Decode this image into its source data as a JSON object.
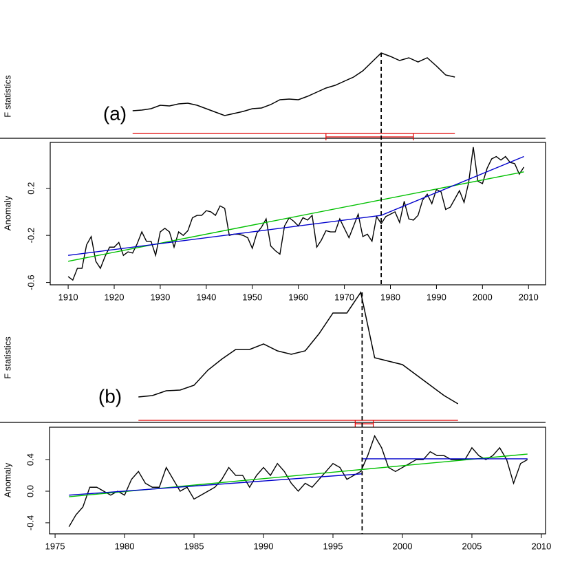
{
  "chart_data": [
    {
      "type": "line",
      "label": "(a)",
      "f_label": "F statistics",
      "ylabel": "Anomaly",
      "f_statistic": {
        "color": "#000000",
        "x": [
          1924,
          1926,
          1928,
          1930,
          1932,
          1934,
          1936,
          1938,
          1940,
          1942,
          1944,
          1946,
          1948,
          1950,
          1952,
          1954,
          1956,
          1958,
          1960,
          1962,
          1964,
          1966,
          1968,
          1970,
          1972,
          1974,
          1976,
          1978,
          1980,
          1982,
          1984,
          1986,
          1988,
          1990,
          1992,
          1994
        ],
        "values": [
          9,
          10,
          12,
          17,
          16,
          19,
          20,
          17,
          12,
          7,
          2,
          5,
          8,
          12,
          13,
          18,
          25,
          26,
          25,
          30,
          36,
          42,
          46,
          52,
          58,
          67,
          80,
          93,
          88,
          82,
          86,
          80,
          86,
          74,
          61,
          58
        ]
      },
      "anomaly": {
        "color": "#000000",
        "x": [
          1910,
          1911,
          1912,
          1913,
          1914,
          1915,
          1916,
          1917,
          1918,
          1919,
          1920,
          1921,
          1922,
          1923,
          1924,
          1925,
          1926,
          1927,
          1928,
          1929,
          1930,
          1931,
          1932,
          1933,
          1934,
          1935,
          1936,
          1937,
          1938,
          1939,
          1940,
          1941,
          1942,
          1943,
          1944,
          1945,
          1946,
          1947,
          1948,
          1949,
          1950,
          1951,
          1952,
          1953,
          1954,
          1955,
          1956,
          1957,
          1958,
          1959,
          1960,
          1961,
          1962,
          1963,
          1964,
          1965,
          1966,
          1967,
          1968,
          1969,
          1970,
          1971,
          1972,
          1973,
          1974,
          1975,
          1976,
          1977,
          1978,
          1979,
          1980,
          1981,
          1982,
          1983,
          1984,
          1985,
          1986,
          1987,
          1988,
          1989,
          1990,
          1991,
          1992,
          1993,
          1994,
          1995,
          1996,
          1997,
          1998,
          1999,
          2000,
          2001,
          2002,
          2003,
          2004,
          2005,
          2006,
          2007,
          2008,
          2009
        ],
        "values": [
          -0.55,
          -0.58,
          -0.48,
          -0.48,
          -0.28,
          -0.21,
          -0.42,
          -0.48,
          -0.38,
          -0.3,
          -0.3,
          -0.26,
          -0.37,
          -0.34,
          -0.35,
          -0.27,
          -0.17,
          -0.25,
          -0.25,
          -0.37,
          -0.17,
          -0.14,
          -0.17,
          -0.3,
          -0.17,
          -0.2,
          -0.16,
          -0.05,
          -0.03,
          -0.03,
          0.01,
          0.0,
          -0.03,
          0.05,
          0.03,
          -0.2,
          -0.19,
          -0.19,
          -0.2,
          -0.22,
          -0.31,
          -0.18,
          -0.13,
          -0.06,
          -0.29,
          -0.33,
          -0.36,
          -0.12,
          -0.05,
          -0.08,
          -0.12,
          -0.05,
          -0.07,
          -0.03,
          -0.3,
          -0.24,
          -0.16,
          -0.17,
          -0.17,
          -0.06,
          -0.14,
          -0.22,
          -0.12,
          -0.02,
          -0.21,
          -0.19,
          -0.25,
          -0.04,
          -0.1,
          -0.04,
          -0.02,
          0.0,
          -0.09,
          0.09,
          -0.06,
          -0.07,
          -0.03,
          0.1,
          0.15,
          0.07,
          0.19,
          0.17,
          0.02,
          0.04,
          0.11,
          0.18,
          0.08,
          0.25,
          0.55,
          0.26,
          0.24,
          0.37,
          0.45,
          0.47,
          0.44,
          0.47,
          0.42,
          0.41,
          0.32,
          0.38
        ]
      },
      "fits": [
        {
          "color": "#00c000",
          "x": [
            1910,
            2009
          ],
          "values": [
            -0.42,
            0.34
          ]
        },
        {
          "color": "#0000cc",
          "x": [
            1910,
            1978,
            2009
          ],
          "values": [
            -0.37,
            -0.03,
            0.47
          ]
        }
      ],
      "breakpoint": 1978,
      "break_range": [
        1924,
        1994
      ],
      "break_ci": [
        1966,
        1985
      ],
      "ci_color": "#e00000",
      "xlim": [
        1906.1,
        2013.7
      ],
      "xticks": [
        1910,
        1920,
        1930,
        1940,
        1950,
        1960,
        1970,
        1980,
        1990,
        2000,
        2010
      ],
      "ylim": [
        -0.62,
        0.59
      ],
      "yticks": [
        -0.6,
        -0.2,
        0.2
      ]
    },
    {
      "type": "line",
      "label": "(b)",
      "f_label": "F statistics",
      "ylabel": "Anomaly",
      "f_statistic": {
        "color": "#000000",
        "x": [
          1981,
          1982,
          1983,
          1984,
          1985,
          1986,
          1987,
          1988,
          1989,
          1990,
          1991,
          1992,
          1993,
          1994,
          1995,
          1996,
          1997,
          1998,
          1999,
          2000,
          2001,
          2002,
          2003,
          2004
        ],
        "values": [
          23,
          25,
          32,
          33,
          40,
          62,
          78,
          92,
          92,
          100,
          90,
          85,
          90,
          115,
          145,
          145,
          175,
          80,
          75,
          70,
          55,
          40,
          25,
          13
        ]
      },
      "anomaly": {
        "color": "#000000",
        "x": [
          1976,
          1976.5,
          1977,
          1977.5,
          1978,
          1978.5,
          1979,
          1979.5,
          1980,
          1980.5,
          1981,
          1981.5,
          1982,
          1982.5,
          1983,
          1983.5,
          1984,
          1984.5,
          1985,
          1985.5,
          1986,
          1986.5,
          1987,
          1987.5,
          1988,
          1988.5,
          1989,
          1989.5,
          1990,
          1990.5,
          1991,
          1991.5,
          1992,
          1992.5,
          1993,
          1993.5,
          1994,
          1994.5,
          1995,
          1995.5,
          1996,
          1996.5,
          1997,
          1997.5,
          1998,
          1998.5,
          1999,
          1999.5,
          2000,
          2000.5,
          2001,
          2001.5,
          2002,
          2002.5,
          2003,
          2003.5,
          2004,
          2004.5,
          2005,
          2005.5,
          2006,
          2006.5,
          2007,
          2007.5,
          2008,
          2008.5,
          2009
        ],
        "values": [
          -0.45,
          -0.3,
          -0.2,
          0.05,
          0.05,
          0.0,
          -0.05,
          0.0,
          -0.05,
          0.15,
          0.25,
          0.1,
          0.05,
          0.05,
          0.3,
          0.15,
          0.0,
          0.05,
          -0.1,
          -0.05,
          0.0,
          0.05,
          0.15,
          0.3,
          0.2,
          0.2,
          0.05,
          0.2,
          0.3,
          0.2,
          0.35,
          0.25,
          0.1,
          0.0,
          0.1,
          0.05,
          0.15,
          0.25,
          0.35,
          0.3,
          0.15,
          0.2,
          0.25,
          0.45,
          0.7,
          0.55,
          0.3,
          0.25,
          0.3,
          0.35,
          0.4,
          0.4,
          0.5,
          0.45,
          0.45,
          0.4,
          0.4,
          0.4,
          0.55,
          0.45,
          0.4,
          0.45,
          0.55,
          0.4,
          0.1,
          0.35,
          0.4
        ]
      },
      "fits": [
        {
          "color": "#00c000",
          "x": [
            1976,
            2009
          ],
          "values": [
            -0.07,
            0.47
          ]
        },
        {
          "color": "#0000cc",
          "x": [
            1976,
            1997.1,
            1997.1,
            1997.1,
            2009
          ],
          "values": [
            -0.05,
            0.22,
            null,
            0.41,
            0.41
          ]
        }
      ],
      "breakpoint": 1997.1,
      "break_range": [
        1981,
        2004
      ],
      "break_ci": [
        1996.6,
        1997.9
      ],
      "ci_color": "#e00000",
      "xlim": [
        1974.6,
        2010.3
      ],
      "xticks": [
        1975,
        1980,
        1985,
        1990,
        1995,
        2000,
        2005,
        2010
      ],
      "ylim": [
        -0.54,
        0.81
      ],
      "yticks": [
        -0.4,
        {
          "value": 0,
          "label": "0.0"
        },
        0.4
      ]
    }
  ]
}
